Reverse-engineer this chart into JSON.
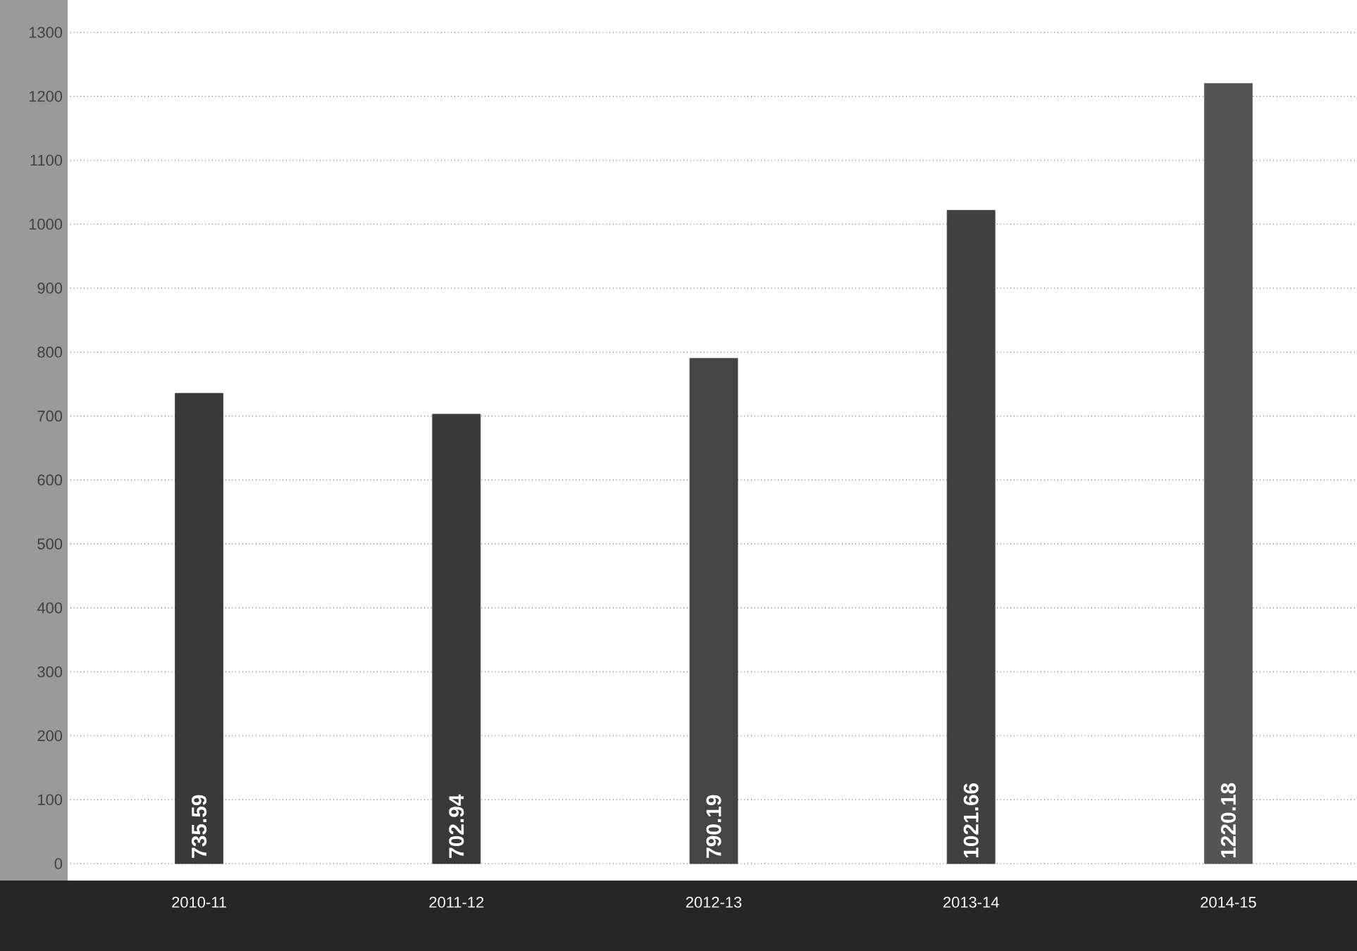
{
  "chart_data": {
    "type": "bar",
    "categories": [
      "2010-11",
      "2011-12",
      "2012-13",
      "2013-14",
      "2014-15"
    ],
    "values": [
      735.59,
      702.94,
      790.19,
      1021.66,
      1220.18
    ],
    "colors": [
      "#3a3a3a",
      "#383838",
      "#444444",
      "#404040",
      "#555555"
    ],
    "ylim": [
      0,
      1300
    ],
    "yticks": [
      0,
      100,
      200,
      300,
      400,
      500,
      600,
      700,
      800,
      900,
      1000,
      1100,
      1200,
      1300
    ],
    "grid": "y",
    "data_labels": true
  }
}
